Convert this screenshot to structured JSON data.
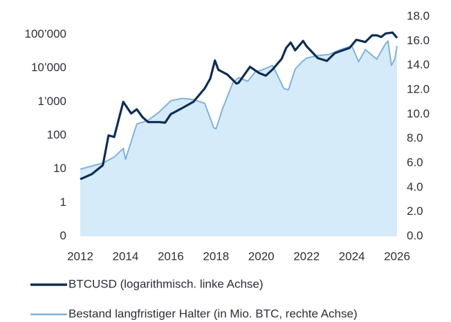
{
  "chart_data": {
    "type": "line",
    "xlim": [
      2012,
      2026
    ],
    "xticks": [
      2012,
      2014,
      2016,
      2018,
      2020,
      2022,
      2024,
      2026
    ],
    "ylim": [
      0.1,
      343000
    ],
    "ylog": true,
    "yticks": [
      {
        "value": 0.1,
        "label": "0"
      },
      1,
      10,
      100,
      {
        "value": 1000,
        "label": "1’000"
      },
      {
        "value": 10000,
        "label": "10’000"
      },
      {
        "value": 100000,
        "label": "100’000"
      }
    ],
    "y2lim": [
      0,
      18
    ],
    "y2ticks": [
      {
        "value": 0,
        "label": "0.0"
      },
      {
        "value": 2,
        "label": "2.0"
      },
      {
        "value": 4,
        "label": "4.0"
      },
      {
        "value": 6,
        "label": "6.0"
      },
      {
        "value": 8,
        "label": "8.0"
      },
      {
        "value": 10,
        "label": "10.0"
      },
      {
        "value": 12,
        "label": "12.0"
      },
      {
        "value": 14,
        "label": "14.0"
      },
      {
        "value": 16,
        "label": "16.0"
      },
      {
        "value": 18,
        "label": "18.0"
      }
    ],
    "legend": "bottom",
    "series": [
      {
        "name": "BTCUSD (logarithmisch. linke Achse)",
        "color": "#0f2d52",
        "x": [
          2012.0,
          2012.5,
          2013.0,
          2013.25,
          2013.5,
          2013.9,
          2014.0,
          2014.25,
          2014.5,
          2014.75,
          2015.0,
          2015.5,
          2015.75,
          2016.0,
          2016.5,
          2017.0,
          2017.5,
          2017.75,
          2017.95,
          2018.1,
          2018.5,
          2018.9,
          2019.0,
          2019.5,
          2019.9,
          2020.2,
          2020.5,
          2020.9,
          2021.1,
          2021.3,
          2021.5,
          2021.85,
          2022.0,
          2022.5,
          2022.9,
          2023.25,
          2023.9,
          2024.2,
          2024.6,
          2024.9,
          2025.1,
          2025.3,
          2025.5,
          2025.8,
          2026.0
        ],
        "values": [
          5,
          7,
          13,
          100,
          90,
          1000,
          800,
          450,
          600,
          350,
          250,
          250,
          240,
          430,
          650,
          1000,
          2500,
          5000,
          17000,
          9000,
          6500,
          3500,
          3700,
          11000,
          7200,
          6000,
          9200,
          19000,
          40000,
          58000,
          34000,
          65000,
          45000,
          20000,
          16500,
          28000,
          40000,
          70000,
          60000,
          95000,
          95000,
          85000,
          108000,
          115000,
          80000
        ]
      },
      {
        "name": "Bestand langfristiger Halter (in Mio. BTC, rechte Achse)",
        "color": "#7fb1dd",
        "fill": "#d6ebf9",
        "axis": "y2",
        "x": [
          2012.0,
          2013.0,
          2013.5,
          2013.9,
          2014.0,
          2014.5,
          2015.0,
          2015.5,
          2016.0,
          2016.5,
          2017.0,
          2017.5,
          2017.9,
          2018.0,
          2018.3,
          2018.75,
          2019.0,
          2019.4,
          2019.75,
          2020.0,
          2020.5,
          2021.0,
          2021.2,
          2021.5,
          2021.8,
          2022.0,
          2022.5,
          2023.0,
          2023.5,
          2024.0,
          2024.3,
          2024.6,
          2025.1,
          2025.5,
          2025.6,
          2025.75,
          2025.9,
          2026.0
        ],
        "values": [
          5.5,
          6.0,
          6.5,
          7.2,
          6.3,
          9.2,
          9.5,
          10.2,
          11.1,
          11.3,
          11.2,
          10.9,
          8.9,
          8.8,
          10.5,
          12.6,
          13.0,
          12.7,
          13.5,
          13.6,
          14.0,
          12.1,
          12.0,
          13.7,
          14.3,
          14.6,
          14.8,
          14.9,
          15.3,
          15.6,
          14.3,
          15.3,
          14.5,
          15.8,
          16.0,
          14.0,
          14.5,
          15.6
        ]
      }
    ]
  }
}
